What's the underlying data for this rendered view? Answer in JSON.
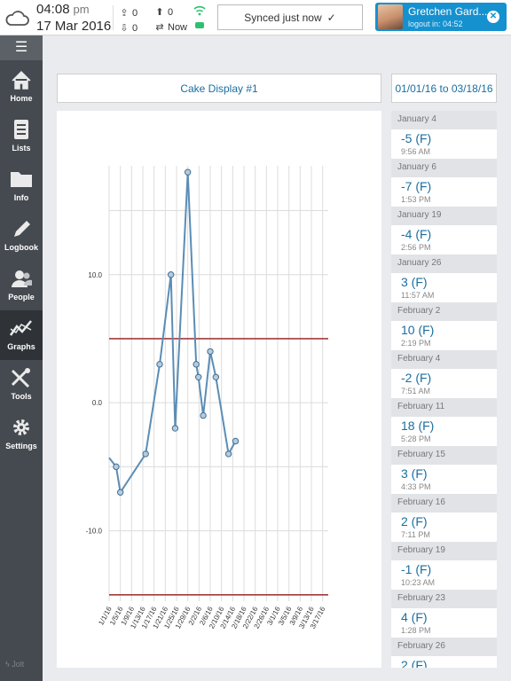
{
  "status": {
    "time": "04:08",
    "ampm": "pm",
    "date": "17 Mar 2016",
    "uploads": "0",
    "downloads": "0",
    "pending": "0",
    "sync_time": "Now",
    "sync_status": "Synced just now"
  },
  "user": {
    "name": "Gretchen Gard...",
    "logout": "logout in: 04:52"
  },
  "sidebar": {
    "items": [
      {
        "label": "Home",
        "icon": "home-icon"
      },
      {
        "label": "Lists",
        "icon": "lists-icon"
      },
      {
        "label": "Info",
        "icon": "folder-icon"
      },
      {
        "label": "Logbook",
        "icon": "pencil-icon"
      },
      {
        "label": "People",
        "icon": "people-icon"
      },
      {
        "label": "Graphs",
        "icon": "graph-icon"
      },
      {
        "label": "Tools",
        "icon": "tools-icon"
      },
      {
        "label": "Settings",
        "icon": "gear-icon"
      }
    ],
    "footer": "Jolt"
  },
  "main": {
    "display_name": "Cake Display #1",
    "date_range": "01/01/16 to 03/18/16"
  },
  "chart_data": {
    "type": "line",
    "x_labels": [
      "1/1/16",
      "1/5/16",
      "1/9/16",
      "1/13/16",
      "1/17/16",
      "1/21/16",
      "1/25/16",
      "1/29/16",
      "2/2/16",
      "2/6/16",
      "2/10/16",
      "2/14/16",
      "2/18/16",
      "2/22/16",
      "2/26/16",
      "3/1/16",
      "3/5/16",
      "3/9/16",
      "3/13/16",
      "3/17/16"
    ],
    "y_ticks": [
      10.0,
      0.0,
      -10.0
    ],
    "y_tick_labels": [
      "10.0",
      "0.0",
      "-10.0"
    ],
    "ylim": [
      -15.5,
      18.5
    ],
    "xlim_days": [
      0,
      78
    ],
    "grid": true,
    "thresholds": [
      5,
      -15
    ],
    "colors": {
      "line": "#5b8db5",
      "marker": "#b7cbdc",
      "threshold": "#a33b3b",
      "grid": "#dcdcdc"
    },
    "points": [
      {
        "day": 0,
        "value": -4.3,
        "marker": false
      },
      {
        "day": 2.5,
        "value": -5
      },
      {
        "day": 4,
        "value": -7
      },
      {
        "day": 13,
        "value": -4
      },
      {
        "day": 18,
        "value": 3
      },
      {
        "day": 22,
        "value": 10
      },
      {
        "day": 23.5,
        "value": -2
      },
      {
        "day": 28,
        "value": 18
      },
      {
        "day": 31,
        "value": 3
      },
      {
        "day": 31.8,
        "value": 2
      },
      {
        "day": 33.5,
        "value": -1
      },
      {
        "day": 36,
        "value": 4
      },
      {
        "day": 38,
        "value": 2
      },
      {
        "day": 42.5,
        "value": -4
      },
      {
        "day": 45,
        "value": -3
      }
    ]
  },
  "readings": [
    {
      "date": "January 4",
      "value": "-5 (F)",
      "time": "9:56 AM"
    },
    {
      "date": "January 6",
      "value": "-7 (F)",
      "time": "1:53 PM"
    },
    {
      "date": "January 19",
      "value": "-4 (F)",
      "time": "2:56 PM"
    },
    {
      "date": "January 26",
      "value": "3 (F)",
      "time": "11:57 AM"
    },
    {
      "date": "February 2",
      "value": "10 (F)",
      "time": "2:19 PM"
    },
    {
      "date": "February 4",
      "value": "-2 (F)",
      "time": "7:51 AM"
    },
    {
      "date": "February 11",
      "value": "18 (F)",
      "time": "5:28 PM"
    },
    {
      "date": "February 15",
      "value": "3 (F)",
      "time": "4:33 PM"
    },
    {
      "date": "February 16",
      "value": "2 (F)",
      "time": "7:11 PM"
    },
    {
      "date": "February 19",
      "value": "-1 (F)",
      "time": "10:23 AM"
    },
    {
      "date": "February 23",
      "value": "4 (F)",
      "time": "1:28 PM"
    },
    {
      "date": "February 26",
      "value": "2 (F)",
      "time": ""
    }
  ]
}
